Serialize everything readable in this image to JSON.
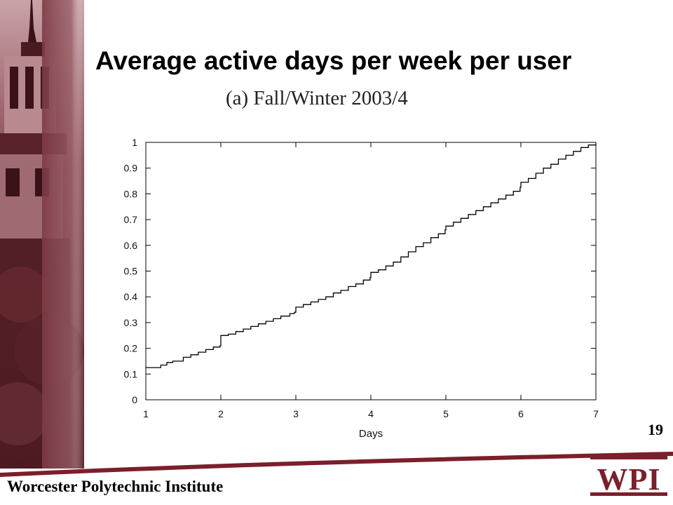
{
  "slide": {
    "title": "Average active days per week per user",
    "caption": "(a)  Fall/Winter 2003/4",
    "slide_number": "19",
    "institution": "Worcester Polytechnic Institute",
    "logo_text": "WPI",
    "brand_color": "#7a1f2b"
  },
  "chart_data": {
    "type": "line",
    "subtype": "step-cdf",
    "title": "(a)  Fall/Winter 2003/4",
    "xlabel": "Days",
    "ylabel": "",
    "xlim": [
      1,
      7
    ],
    "ylim": [
      0,
      1
    ],
    "x_ticks": [
      "1",
      "2",
      "3",
      "4",
      "5",
      "6",
      "7"
    ],
    "y_ticks": [
      "0",
      "0.1",
      "0.2",
      "0.3",
      "0.4",
      "0.5",
      "0.6",
      "0.7",
      "0.8",
      "0.9",
      "1"
    ],
    "grid": false,
    "series": [
      {
        "color": "#000000",
        "points": [
          [
            1.0,
            0.125
          ],
          [
            1.14,
            0.125
          ],
          [
            1.2,
            0.135
          ],
          [
            1.28,
            0.145
          ],
          [
            1.36,
            0.15
          ],
          [
            1.5,
            0.165
          ],
          [
            1.6,
            0.175
          ],
          [
            1.7,
            0.185
          ],
          [
            1.8,
            0.195
          ],
          [
            1.9,
            0.205
          ],
          [
            1.99,
            0.21
          ],
          [
            2.0,
            0.25
          ],
          [
            2.1,
            0.255
          ],
          [
            2.2,
            0.265
          ],
          [
            2.3,
            0.275
          ],
          [
            2.4,
            0.285
          ],
          [
            2.5,
            0.295
          ],
          [
            2.6,
            0.305
          ],
          [
            2.7,
            0.315
          ],
          [
            2.8,
            0.325
          ],
          [
            2.92,
            0.335
          ],
          [
            2.98,
            0.34
          ],
          [
            3.0,
            0.36
          ],
          [
            3.1,
            0.37
          ],
          [
            3.2,
            0.38
          ],
          [
            3.3,
            0.39
          ],
          [
            3.4,
            0.4
          ],
          [
            3.5,
            0.415
          ],
          [
            3.6,
            0.425
          ],
          [
            3.7,
            0.44
          ],
          [
            3.8,
            0.45
          ],
          [
            3.9,
            0.465
          ],
          [
            3.99,
            0.475
          ],
          [
            4.0,
            0.495
          ],
          [
            4.1,
            0.505
          ],
          [
            4.2,
            0.52
          ],
          [
            4.3,
            0.535
          ],
          [
            4.4,
            0.555
          ],
          [
            4.5,
            0.575
          ],
          [
            4.6,
            0.595
          ],
          [
            4.7,
            0.61
          ],
          [
            4.8,
            0.63
          ],
          [
            4.9,
            0.645
          ],
          [
            4.99,
            0.66
          ],
          [
            5.0,
            0.675
          ],
          [
            5.1,
            0.69
          ],
          [
            5.2,
            0.705
          ],
          [
            5.3,
            0.72
          ],
          [
            5.4,
            0.735
          ],
          [
            5.5,
            0.75
          ],
          [
            5.6,
            0.765
          ],
          [
            5.7,
            0.78
          ],
          [
            5.8,
            0.795
          ],
          [
            5.9,
            0.81
          ],
          [
            5.99,
            0.825
          ],
          [
            6.0,
            0.845
          ],
          [
            6.1,
            0.86
          ],
          [
            6.2,
            0.88
          ],
          [
            6.3,
            0.9
          ],
          [
            6.4,
            0.915
          ],
          [
            6.5,
            0.935
          ],
          [
            6.6,
            0.95
          ],
          [
            6.7,
            0.965
          ],
          [
            6.8,
            0.98
          ],
          [
            6.9,
            0.99
          ],
          [
            7.0,
            0.995
          ]
        ]
      }
    ]
  },
  "colors": {
    "title_text": "#000000",
    "photo_tone": "#8a4a52",
    "footer_curve": "#7a1f2b"
  },
  "icons": {
    "side_photo": "clock-tower-photo",
    "logo": "wpi-logo"
  }
}
